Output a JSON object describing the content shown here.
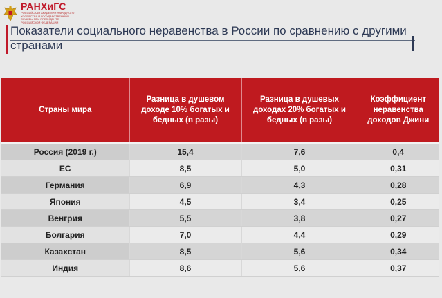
{
  "logo": {
    "name": "РАНХиГС",
    "subtitle": "РОССИЙСКАЯ АКАДЕМИЯ НАРОДНОГО ХОЗЯЙСТВА И ГОСУДАРСТВЕННОЙ СЛУЖБЫ ПРИ ПРЕЗИДЕНТЕ РОССИЙСКОЙ ФЕДЕРАЦИИ"
  },
  "title": "Показатели социального неравенства в России по сравнению с другими странами",
  "table": {
    "headers": [
      "Страны мира",
      "Разница в душевом доходе 10% богатых и бедных (в разы)",
      "Разница в душевых доходах 20% богатых и бедных (в разы)",
      "Коэффициент неравенства доходов Джини"
    ],
    "rows": [
      [
        "Россия (2019 г.)",
        "15,4",
        "7,6",
        "0,4"
      ],
      [
        "ЕС",
        "8,5",
        "5,0",
        "0,31"
      ],
      [
        "Германия",
        "6,9",
        "4,3",
        "0,28"
      ],
      [
        "Япония",
        "4,5",
        "3,4",
        "0,25"
      ],
      [
        "Венгрия",
        "5,5",
        "3,8",
        "0,27"
      ],
      [
        "Болгария",
        "7,0",
        "4,4",
        "0,29"
      ],
      [
        "Казахстан",
        "8,5",
        "5,6",
        "0,34"
      ],
      [
        "Индия",
        "8,6",
        "5,6",
        "0,37"
      ]
    ]
  },
  "colors": {
    "accent": "#bf1a1f",
    "title_text": "#2e3a55"
  }
}
